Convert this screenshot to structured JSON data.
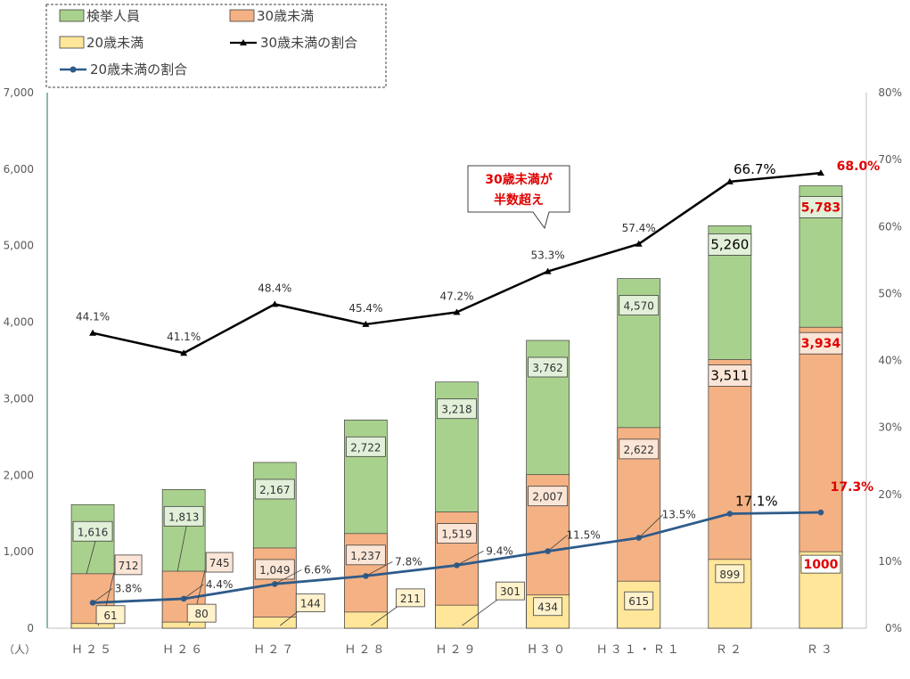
{
  "chart_data": {
    "type": "bar",
    "categories": [
      "Ｈ２５",
      "Ｈ２６",
      "Ｈ２７",
      "Ｈ２８",
      "Ｈ２９",
      "H３０",
      "Ｈ３１・Ｒ１",
      "Ｒ２",
      "Ｒ３"
    ],
    "series": [
      {
        "name": "検挙人員",
        "kind": "bar-total",
        "color": "#a9d18e",
        "values": [
          1616,
          1813,
          2167,
          2722,
          3218,
          3762,
          4570,
          5260,
          5783
        ],
        "labels": [
          "1,616",
          "1,813",
          "2,167",
          "2,722",
          "3,218",
          "3,762",
          "4,570",
          "5,260",
          "5,783"
        ]
      },
      {
        "name": "30歳未満",
        "kind": "bar-overlay",
        "color": "#f4b183",
        "values": [
          712,
          745,
          1049,
          1237,
          1519,
          2007,
          2622,
          3511,
          3934
        ],
        "labels": [
          "712",
          "745",
          "1,049",
          "1,237",
          "1,519",
          "2,007",
          "2,622",
          "3,511",
          "3,934"
        ]
      },
      {
        "name": "20歳未満",
        "kind": "bar-overlay",
        "color": "#ffe699",
        "values": [
          61,
          80,
          144,
          211,
          301,
          434,
          615,
          899,
          1000
        ],
        "labels": [
          "61",
          "80",
          "144",
          "211",
          "301",
          "434",
          "615",
          "899",
          "1000"
        ]
      },
      {
        "name": "30歳未満の割合",
        "kind": "line",
        "axis": "right",
        "color": "#000000",
        "values": [
          44.1,
          41.1,
          48.4,
          45.4,
          47.2,
          53.3,
          57.4,
          66.7,
          68.0
        ],
        "labels": [
          "44.1%",
          "41.1%",
          "48.4%",
          "45.4%",
          "47.2%",
          "53.3%",
          "57.4%",
          "66.7%",
          "68.0%"
        ]
      },
      {
        "name": "20歳未満の割合",
        "kind": "line",
        "axis": "right",
        "color": "#2e5b8a",
        "values": [
          3.8,
          4.4,
          6.6,
          7.8,
          9.4,
          11.5,
          13.5,
          17.1,
          17.3
        ],
        "labels": [
          "3.8%",
          "4.4%",
          "6.6%",
          "7.8%",
          "9.4%",
          "11.5%",
          "13.5%",
          "17.1%",
          "17.3%"
        ]
      }
    ],
    "ylim": [
      0,
      7000
    ],
    "y_ticks": [
      "0",
      "1,000",
      "2,000",
      "3,000",
      "4,000",
      "5,000",
      "6,000",
      "7,000"
    ],
    "y2lim": [
      0,
      80
    ],
    "y2_ticks": [
      "0%",
      "10%",
      "20%",
      "30%",
      "40%",
      "50%",
      "60%",
      "70%",
      "80%"
    ],
    "ylabel": "（人）",
    "legend_position": "top-left",
    "grid": false,
    "annotation": {
      "text_line1": "30歳未満が",
      "text_line2": "半数超え"
    }
  }
}
